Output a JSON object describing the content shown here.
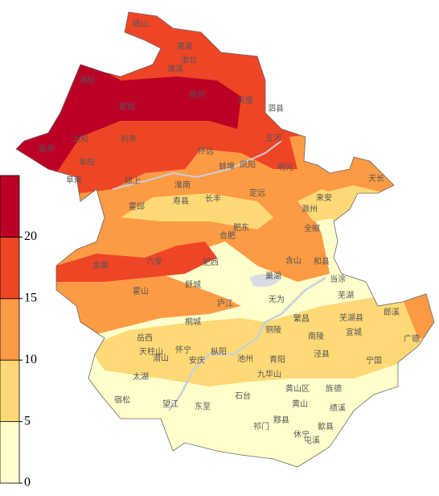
{
  "legend": {
    "ticks": [
      0,
      5,
      10,
      15,
      20
    ],
    "range": [
      0,
      25
    ],
    "colors": [
      "#ffffcc",
      "#fed976",
      "#fd9a44",
      "#ee4526",
      "#bd0026"
    ]
  },
  "places": [
    "砀山",
    "萧县",
    "淮北",
    "濉溪",
    "涡阳",
    "蒙城",
    "宿州",
    "灵璧",
    "泗县",
    "临泉",
    "太和",
    "利辛",
    "阜阳",
    "阜南",
    "颍上",
    "怀远",
    "五河",
    "蚌埠",
    "凤阳",
    "明光",
    "天长",
    "淮南",
    "霍邱",
    "寿县",
    "长丰",
    "定远",
    "来安",
    "滁州",
    "全椒",
    "肥东",
    "合肥",
    "金寨",
    "六安",
    "肥西",
    "含山",
    "和县",
    "当涂",
    "巢湖",
    "舒城",
    "霍山",
    "庐江",
    "无为",
    "芜湖",
    "芜湖县",
    "繁昌",
    "郎溪",
    "广德",
    "宣城",
    "南陵",
    "岳西",
    "桐城",
    "枞阳",
    "铜陵",
    "天柱山",
    "潜山",
    "怀宁",
    "安庆",
    "池州",
    "青阳",
    "泾县",
    "宁国",
    "太湖",
    "九华山",
    "望江",
    "东至",
    "石台",
    "黄山区",
    "旌德",
    "黄山",
    "绩溪",
    "宿松",
    "祁门",
    "黟县",
    "歙县",
    "休宁",
    "屯溪"
  ]
}
